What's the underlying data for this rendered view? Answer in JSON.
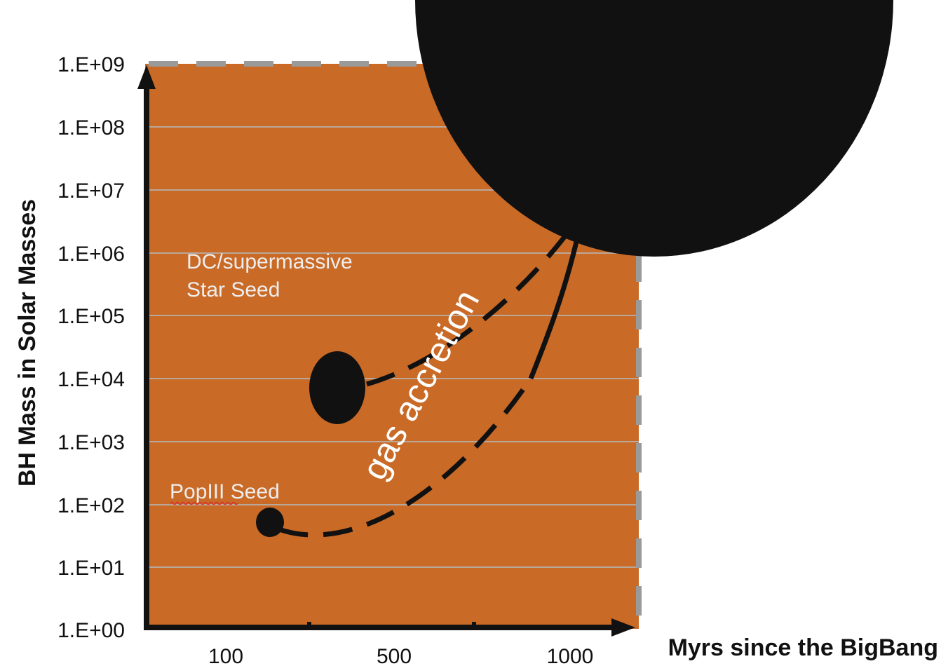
{
  "chart_data": {
    "type": "diagram",
    "y_axis": {
      "label": "BH Mass in Solar Masses",
      "scale": "log",
      "ticks": [
        "1.E+00",
        "1.E+01",
        "1.E+02",
        "1.E+03",
        "1.E+04",
        "1.E+05",
        "1.E+06",
        "1.E+07",
        "1.E+08",
        "1.E+09"
      ],
      "range": [
        1,
        1000000000
      ]
    },
    "x_axis": {
      "label": "Myrs since the BigBang",
      "ticks": [
        "100",
        "500",
        "1000"
      ]
    },
    "grid": true,
    "annotations": {
      "dc_seed_line1": "DC/supermassive",
      "dc_seed_line2": "Star Seed",
      "popiii_seed": "PopIII Seed",
      "growth_label": "gas accretion"
    },
    "colors": {
      "region_fill": "#c96a27",
      "gridline": "#b9a89a",
      "axis": "#111111",
      "seed_marker": "#111111",
      "boundary_dash": "#9a9a9a"
    }
  }
}
